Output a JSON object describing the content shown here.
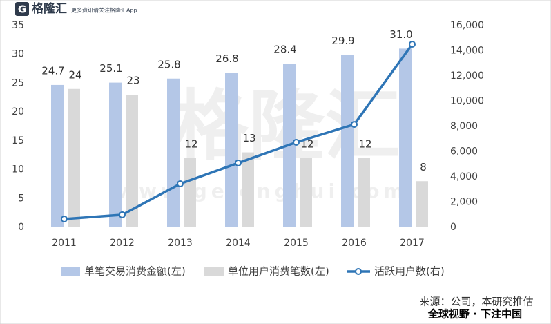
{
  "header": {
    "logo_mark": "G",
    "logo": "格隆汇",
    "slogan": "更多资讯请关注格隆汇App"
  },
  "watermark": {
    "text": "格隆汇",
    "site": "www.gelonghui.com"
  },
  "chart_data": {
    "type": "bar_line",
    "categories": [
      "2011",
      "2012",
      "2013",
      "2014",
      "2015",
      "2016",
      "2017"
    ],
    "series": [
      {
        "name": "单笔交易消费金额(左)",
        "type": "bar",
        "color": "#b4c7e7",
        "values": [
          24.7,
          25.1,
          25.8,
          26.8,
          28.4,
          29.9,
          31.0
        ],
        "value_labels": [
          "24.7",
          "25.1",
          "25.8",
          "26.8",
          "28.4",
          "29.9",
          "31.0"
        ]
      },
      {
        "name": "单位用户消费笔数(左)",
        "type": "bar",
        "color": "#d9d9d9",
        "values": [
          24,
          23,
          12,
          13,
          12,
          12,
          8
        ]
      },
      {
        "name": "活跃用户数(右)",
        "type": "line",
        "axis": "y2",
        "color": "#2e75b6",
        "values": [
          660,
          990,
          3450,
          5100,
          6740,
          8160,
          14520
        ]
      }
    ],
    "ylim": [
      0,
      35
    ],
    "yticks": [
      0,
      5,
      10,
      15,
      20,
      25,
      30,
      35
    ],
    "y2lim": [
      0,
      16000
    ],
    "y2ticks": [
      0,
      {
        "value": 2000,
        "label": "2,000"
      },
      {
        "value": 4000,
        "label": "4,000"
      },
      {
        "value": 6000,
        "label": "6,000"
      },
      {
        "value": 8000,
        "label": "8,000"
      },
      {
        "value": 10000,
        "label": "10,000"
      },
      {
        "value": 12000,
        "label": "12,000"
      },
      {
        "value": 14000,
        "label": "14,000"
      },
      {
        "value": 16000,
        "label": "16,000"
      }
    ],
    "grid": false,
    "legend": "bottom"
  },
  "footer": {
    "source": "来源：公司，本研究推估",
    "tagline": "全球视野 · 下注中国"
  }
}
